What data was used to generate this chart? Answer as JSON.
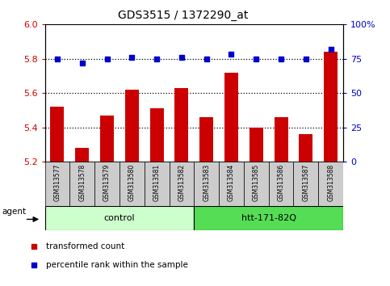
{
  "title": "GDS3515 / 1372290_at",
  "samples": [
    "GSM313577",
    "GSM313578",
    "GSM313579",
    "GSM313580",
    "GSM313581",
    "GSM313582",
    "GSM313583",
    "GSM313584",
    "GSM313585",
    "GSM313586",
    "GSM313587",
    "GSM313588"
  ],
  "transformed_count": [
    5.52,
    5.28,
    5.47,
    5.62,
    5.51,
    5.63,
    5.46,
    5.72,
    5.4,
    5.46,
    5.36,
    5.84
  ],
  "percentile_rank": [
    75,
    72,
    75,
    76,
    75,
    76,
    75,
    78,
    75,
    75,
    75,
    82
  ],
  "ylim_left": [
    5.2,
    6.0
  ],
  "ylim_right": [
    0,
    100
  ],
  "yticks_left": [
    5.2,
    5.4,
    5.6,
    5.8,
    6.0
  ],
  "yticks_right": [
    0,
    25,
    50,
    75,
    100
  ],
  "ytick_labels_right": [
    "0",
    "25",
    "50",
    "75",
    "100%"
  ],
  "bar_color": "#CC0000",
  "dot_color": "#0000CC",
  "bar_bottom": 5.2,
  "dotted_line_values": [
    5.4,
    5.6,
    5.8
  ],
  "legend_bar_label": "transformed count",
  "legend_dot_label": "percentile rank within the sample",
  "group_row_color_control": "#ccffcc",
  "group_row_color_htt": "#55dd55",
  "xlabel_color": "#CC0000",
  "ylabel_right_color": "#0000CC",
  "sample_box_color": "#cccccc",
  "control_n": 6,
  "htt_n": 6
}
